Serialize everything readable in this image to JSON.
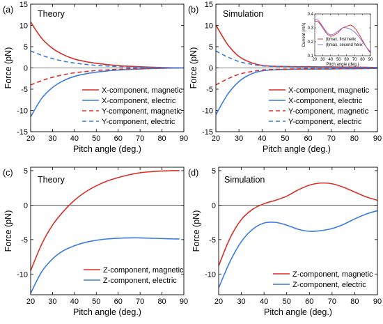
{
  "colors": {
    "magnetic": "#d73027",
    "electric": "#3a7be0",
    "inset_first": "#d7191c",
    "inset_second": "#7b6fd9"
  },
  "chart_data": [
    {
      "type": "line",
      "panel": "(a)",
      "title": "Theory",
      "xlabel": "Pitch angle (deg.)",
      "ylabel": "Force (pN)",
      "xlim": [
        20,
        90
      ],
      "ylim": [
        -15,
        15
      ],
      "xticks": [
        20,
        30,
        40,
        50,
        60,
        70,
        80,
        90
      ],
      "yticks": [
        -15,
        -10,
        -5,
        0,
        5,
        10,
        15
      ],
      "legend_position": "lower-right",
      "x": [
        20,
        25,
        30,
        35,
        40,
        45,
        50,
        55,
        60,
        65,
        70,
        75,
        80,
        85,
        90
      ],
      "series": [
        {
          "name": "X-component, magnetic",
          "color": "magnetic",
          "dash": false,
          "values": [
            10.8,
            7.0,
            4.6,
            3.1,
            2.1,
            1.5,
            1.1,
            0.8,
            0.55,
            0.4,
            0.28,
            0.18,
            0.1,
            0.04,
            0.0
          ]
        },
        {
          "name": "X-component, electric",
          "color": "electric",
          "dash": false,
          "values": [
            -11.5,
            -7.2,
            -4.6,
            -3.0,
            -2.0,
            -1.4,
            -1.0,
            -0.7,
            -0.5,
            -0.35,
            -0.25,
            -0.15,
            -0.08,
            -0.03,
            0.0
          ]
        },
        {
          "name": "Y-component, magnetic",
          "color": "magnetic",
          "dash": true,
          "values": [
            -4.0,
            -3.0,
            -2.2,
            -1.6,
            -1.15,
            -0.85,
            -0.6,
            -0.45,
            -0.32,
            -0.22,
            -0.15,
            -0.09,
            -0.05,
            -0.02,
            0.0
          ]
        },
        {
          "name": "Y-component, electric",
          "color": "electric",
          "dash": true,
          "values": [
            4.0,
            3.0,
            2.2,
            1.6,
            1.15,
            0.85,
            0.6,
            0.45,
            0.32,
            0.22,
            0.15,
            0.09,
            0.05,
            0.02,
            0.0
          ]
        }
      ]
    },
    {
      "type": "line",
      "panel": "(b)",
      "title": "Simulation",
      "xlabel": "Pitch angle (deg.)",
      "ylabel": "Force (pN)",
      "xlim": [
        20,
        90
      ],
      "ylim": [
        -15,
        15
      ],
      "xticks": [
        20,
        30,
        40,
        50,
        60,
        70,
        80,
        90
      ],
      "yticks": [
        -15,
        -10,
        -5,
        0,
        5,
        10,
        15
      ],
      "legend_position": "lower-right",
      "x": [
        20,
        25,
        30,
        35,
        40,
        45,
        50,
        55,
        60,
        65,
        70,
        75,
        80,
        85,
        90
      ],
      "series": [
        {
          "name": "X-component, magnetic",
          "color": "magnetic",
          "dash": false,
          "values": [
            10.1,
            5.6,
            2.7,
            1.3,
            0.6,
            0.4,
            0.35,
            0.3,
            0.3,
            0.25,
            0.25,
            0.2,
            0.2,
            0.15,
            0.1
          ]
        },
        {
          "name": "X-component, electric",
          "color": "electric",
          "dash": false,
          "values": [
            -11.0,
            -6.3,
            -3.2,
            -1.5,
            -0.7,
            -0.45,
            -0.35,
            -0.3,
            -0.3,
            -0.25,
            -0.25,
            -0.2,
            -0.2,
            -0.15,
            -0.1
          ]
        },
        {
          "name": "Y-component, magnetic",
          "color": "magnetic",
          "dash": true,
          "values": [
            -4.0,
            -2.6,
            -1.5,
            -0.9,
            -0.5,
            -0.35,
            -0.3,
            -0.25,
            -0.2,
            -0.2,
            -0.15,
            -0.12,
            -0.1,
            -0.08,
            -0.05
          ]
        },
        {
          "name": "Y-component, electric",
          "color": "electric",
          "dash": true,
          "values": [
            4.0,
            2.6,
            1.5,
            0.9,
            0.5,
            0.35,
            0.3,
            0.25,
            0.2,
            0.2,
            0.15,
            0.12,
            0.1,
            0.08,
            0.05
          ]
        }
      ]
    },
    {
      "type": "line",
      "panel": "inset",
      "xlabel": "Pitch angle (deg.)",
      "ylabel": "Current (mA)",
      "xlim": [
        20,
        90
      ],
      "ylim": [
        0.1,
        0.4
      ],
      "xticks": [
        20,
        30,
        40,
        50,
        60,
        70,
        80,
        90
      ],
      "yticks": [
        0.1,
        0.2,
        0.3,
        0.4
      ],
      "legend_position": "lower-left",
      "x": [
        20,
        25,
        30,
        35,
        40,
        45,
        50,
        55,
        60,
        65,
        70,
        75,
        80,
        85,
        90
      ],
      "series": [
        {
          "name": "|I|max, first helix",
          "color": "inset_first",
          "values": [
            0.35,
            0.34,
            0.3,
            0.26,
            0.24,
            0.25,
            0.27,
            0.3,
            0.31,
            0.32,
            0.3,
            0.26,
            0.21,
            0.16,
            0.12
          ]
        },
        {
          "name": "|I|max, second helix",
          "color": "inset_second",
          "values": [
            0.36,
            0.35,
            0.31,
            0.27,
            0.25,
            0.26,
            0.28,
            0.3,
            0.3,
            0.29,
            0.27,
            0.24,
            0.2,
            0.16,
            0.13
          ]
        }
      ]
    },
    {
      "type": "line",
      "panel": "(c)",
      "title": "Theory",
      "xlabel": "Pitch angle (deg.)",
      "ylabel": "Force (pN)",
      "xlim": [
        20,
        90
      ],
      "ylim": [
        -13,
        5.5
      ],
      "xticks": [
        20,
        30,
        40,
        50,
        60,
        70,
        80,
        90
      ],
      "yticks": [
        -10,
        -5,
        0,
        5
      ],
      "legend_position": "lower-right",
      "x": [
        20,
        25,
        30,
        35,
        40,
        45,
        50,
        55,
        60,
        65,
        70,
        75,
        80,
        85,
        88
      ],
      "series": [
        {
          "name": "Z-component, magnetic",
          "color": "magnetic",
          "dash": false,
          "values": [
            -9.5,
            -5.7,
            -2.9,
            -0.9,
            0.7,
            1.9,
            2.8,
            3.5,
            4.0,
            4.4,
            4.7,
            4.85,
            4.95,
            5.0,
            5.0
          ]
        },
        {
          "name": "Z-component, electric",
          "color": "electric",
          "dash": false,
          "values": [
            -12.8,
            -9.7,
            -7.8,
            -6.6,
            -5.9,
            -5.4,
            -5.1,
            -4.9,
            -4.8,
            -4.75,
            -4.75,
            -4.8,
            -4.85,
            -4.9,
            -4.9
          ]
        }
      ]
    },
    {
      "type": "line",
      "panel": "(d)",
      "title": "Simulation",
      "xlabel": "Pitch angle (deg.)",
      "ylabel": "Force (pN)",
      "xlim": [
        20,
        90
      ],
      "ylim": [
        -13,
        5.5
      ],
      "xticks": [
        20,
        30,
        40,
        50,
        60,
        70,
        80,
        90
      ],
      "yticks": [
        -10,
        -5,
        0,
        5
      ],
      "legend_position": "lower-right",
      "x": [
        20,
        25,
        30,
        35,
        40,
        45,
        50,
        55,
        60,
        65,
        70,
        75,
        80,
        85,
        90
      ],
      "series": [
        {
          "name": "Z-component, magnetic",
          "color": "magnetic",
          "dash": false,
          "values": [
            -8.8,
            -4.8,
            -2.1,
            -0.6,
            0.2,
            0.7,
            1.3,
            2.2,
            2.9,
            3.2,
            3.1,
            2.6,
            1.9,
            1.2,
            0.7
          ]
        },
        {
          "name": "Z-component, electric",
          "color": "electric",
          "dash": false,
          "values": [
            -12.0,
            -8.2,
            -5.3,
            -3.5,
            -2.6,
            -2.5,
            -2.9,
            -3.5,
            -3.8,
            -3.7,
            -3.4,
            -2.8,
            -2.0,
            -1.3,
            -0.8
          ]
        }
      ]
    }
  ]
}
